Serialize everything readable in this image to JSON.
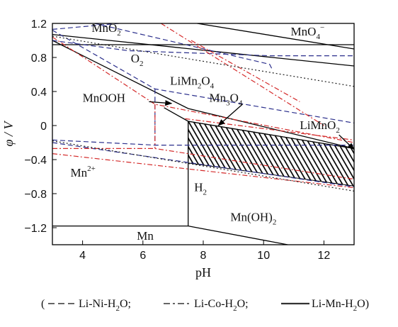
{
  "chart_data": {
    "type": "line",
    "xlabel": "pH",
    "ylabel": "φ / V",
    "xlim": [
      3,
      13
    ],
    "ylim": [
      -1.4,
      1.2
    ],
    "xticks": [
      4,
      6,
      8,
      10,
      12
    ],
    "yticks": [
      1.2,
      0.8,
      0.4,
      0,
      -0.4,
      -0.8,
      -1.2
    ],
    "ytick_labels": [
      "1.2",
      "0.8",
      "0.4",
      "0",
      "−0.4",
      "−0.8",
      "−1.2"
    ],
    "grid": false,
    "hatched_region": {
      "name": "",
      "points": [
        [
          7.5,
          0.05
        ],
        [
          13,
          -0.27
        ],
        [
          13,
          -0.71
        ],
        [
          7.5,
          -0.44
        ]
      ]
    },
    "series": [
      {
        "system": "Li-Mn-H2O",
        "style": "solid",
        "color": "#000000",
        "points": [
          [
            3,
            0.95
          ],
          [
            13,
            0.95
          ]
        ]
      },
      {
        "system": "Li-Mn-H2O",
        "style": "solid",
        "color": "#000000",
        "points": [
          [
            3,
            1.07
          ],
          [
            13,
            0.7
          ]
        ]
      },
      {
        "system": "Li-Mn-H2O",
        "style": "solid",
        "color": "#000000",
        "points": [
          [
            7.8,
            1.2
          ],
          [
            13,
            0.9
          ]
        ]
      },
      {
        "system": "Li-Mn-H2O",
        "style": "solid",
        "color": "#000000",
        "points": [
          [
            3,
            1.0
          ],
          [
            7.5,
            0.2
          ],
          [
            13,
            -0.27
          ]
        ]
      },
      {
        "system": "Li-Mn-H2O",
        "style": "solid",
        "color": "#000000",
        "points": [
          [
            6.7,
            0.21
          ],
          [
            7.5,
            0.05
          ],
          [
            13,
            -0.27
          ]
        ]
      },
      {
        "system": "Li-Mn-H2O",
        "style": "solid",
        "color": "#000000",
        "points": [
          [
            7.5,
            0.05
          ],
          [
            7.5,
            -1.18
          ]
        ]
      },
      {
        "system": "Li-Mn-H2O",
        "style": "solid",
        "color": "#000000",
        "points": [
          [
            3,
            -1.18
          ],
          [
            7.5,
            -1.18
          ],
          [
            10.8,
            -1.4
          ]
        ]
      },
      {
        "system": "Li-Ni-H2O",
        "style": "dashed",
        "color": "#2b2f8c",
        "points": [
          [
            3,
            1.13
          ],
          [
            5.2,
            1.2
          ]
        ]
      },
      {
        "system": "Li-Ni-H2O",
        "style": "dashed",
        "color": "#2b2f8c",
        "points": [
          [
            3,
            1.0
          ],
          [
            5.5,
            0.88
          ],
          [
            10.2,
            0.82
          ],
          [
            13,
            0.82
          ]
        ]
      },
      {
        "system": "Li-Ni-H2O",
        "style": "dashed",
        "color": "#2b2f8c",
        "points": [
          [
            4.4,
            1.2
          ],
          [
            10.2,
            0.72
          ],
          [
            10.3,
            0.65
          ]
        ]
      },
      {
        "system": "Li-Ni-H2O",
        "style": "dashed",
        "color": "#2b2f8c",
        "points": [
          [
            3.0,
            1.12
          ],
          [
            6.4,
            0.43
          ],
          [
            13,
            0.03
          ]
        ]
      },
      {
        "system": "Li-Ni-H2O",
        "style": "dashed",
        "color": "#2b2f8c",
        "points": [
          [
            6.4,
            0.43
          ],
          [
            6.4,
            -0.23
          ]
        ]
      },
      {
        "system": "Li-Ni-H2O",
        "style": "dashed",
        "color": "#2b2f8c",
        "points": [
          [
            3,
            -0.17
          ],
          [
            6.4,
            -0.23
          ],
          [
            13,
            -0.23
          ]
        ]
      },
      {
        "system": "Li-Ni-H2O",
        "style": "dashed",
        "color": "#2b2f8c",
        "points": [
          [
            3,
            -0.2
          ],
          [
            13,
            -0.72
          ]
        ]
      },
      {
        "system": "Li-Co-H2O",
        "style": "dashdot",
        "color": "#d42a2a",
        "points": [
          [
            3,
            1.04
          ],
          [
            6.4,
            0.25
          ],
          [
            13,
            -0.2
          ]
        ]
      },
      {
        "system": "Li-Co-H2O",
        "style": "dashdot",
        "color": "#d42a2a",
        "points": [
          [
            6.4,
            0.25
          ],
          [
            6.4,
            -0.27
          ]
        ]
      },
      {
        "system": "Li-Co-H2O",
        "style": "dashdot",
        "color": "#d42a2a",
        "points": [
          [
            3,
            -0.27
          ],
          [
            6.4,
            -0.27
          ],
          [
            13,
            -0.63
          ]
        ]
      },
      {
        "system": "Li-Co-H2O",
        "style": "dashdot",
        "color": "#d42a2a",
        "points": [
          [
            6.6,
            1.2
          ],
          [
            12.0,
            0.0
          ]
        ]
      },
      {
        "system": "Li-Co-H2O",
        "style": "dashdot",
        "color": "#d42a2a",
        "points": [
          [
            7.6,
            1.0
          ],
          [
            11.2,
            0.28
          ]
        ]
      },
      {
        "system": "Li-Co-H2O",
        "style": "dashdot",
        "color": "#d42a2a",
        "points": [
          [
            7.4,
            0.08
          ],
          [
            13,
            -0.17
          ]
        ]
      },
      {
        "system": "Li-Co-H2O",
        "style": "dashdot",
        "color": "#d42a2a",
        "points": [
          [
            3,
            -0.33
          ],
          [
            13,
            -0.73
          ]
        ]
      },
      {
        "system": "O2/H2O",
        "style": "dotted",
        "color": "#222222",
        "points": [
          [
            3,
            1.05
          ],
          [
            13,
            0.46
          ]
        ]
      },
      {
        "system": "H2/H2O",
        "style": "dotted",
        "color": "#222222",
        "points": [
          [
            3,
            -0.18
          ],
          [
            13,
            -0.77
          ]
        ]
      }
    ],
    "region_labels": [
      {
        "text": "MnO",
        "sub": "2",
        "sup": "",
        "at": [
          4.3,
          1.1
        ]
      },
      {
        "text": "MnO",
        "sub": "4",
        "sup": "−",
        "at": [
          10.9,
          1.06
        ]
      },
      {
        "text": "O",
        "sub": "2",
        "sup": "",
        "at": [
          5.6,
          0.74
        ]
      },
      {
        "text": "LiMn",
        "sub": "2",
        "sup": "",
        "tail": "O",
        "tail_sub": "4",
        "at": [
          6.9,
          0.48
        ]
      },
      {
        "text": "MnOOH",
        "sub": "",
        "sup": "",
        "at": [
          4.0,
          0.28
        ]
      },
      {
        "text": "Mn",
        "sub": "3",
        "sup": "",
        "tail": "O",
        "tail_sub": "4",
        "at": [
          8.2,
          0.28
        ]
      },
      {
        "text": "LiMnO",
        "sub": "2",
        "sup": "",
        "at": [
          11.2,
          -0.04
        ]
      },
      {
        "text": "Mn",
        "sub": "",
        "sup": "2+",
        "at": [
          3.6,
          -0.6
        ]
      },
      {
        "text": "H",
        "sub": "2",
        "sup": "",
        "at": [
          7.7,
          -0.77
        ]
      },
      {
        "text": "Mn(OH)",
        "sub": "2",
        "sup": "",
        "at": [
          8.9,
          -1.12
        ]
      },
      {
        "text": "Mn",
        "sub": "",
        "sup": "",
        "at": [
          5.8,
          -1.34
        ]
      }
    ],
    "arrows": [
      {
        "from": [
          6.2,
          0.28
        ],
        "to": [
          6.95,
          0.26
        ]
      },
      {
        "from": [
          9.3,
          0.25
        ],
        "to": [
          8.5,
          0.0
        ]
      },
      {
        "from": [
          12.5,
          -0.11
        ],
        "to": [
          13.0,
          -0.28
        ]
      }
    ]
  },
  "legend": {
    "open": "(",
    "items": [
      {
        "style": "dashed",
        "label": "Li-Ni-H",
        "sub": "2",
        "tail": "O;"
      },
      {
        "style": "dashdot",
        "label": "Li-Co-H",
        "sub": "2",
        "tail": "O;"
      },
      {
        "style": "solid",
        "label": "Li-Mn-H",
        "sub": "2",
        "tail": "O)"
      }
    ]
  }
}
